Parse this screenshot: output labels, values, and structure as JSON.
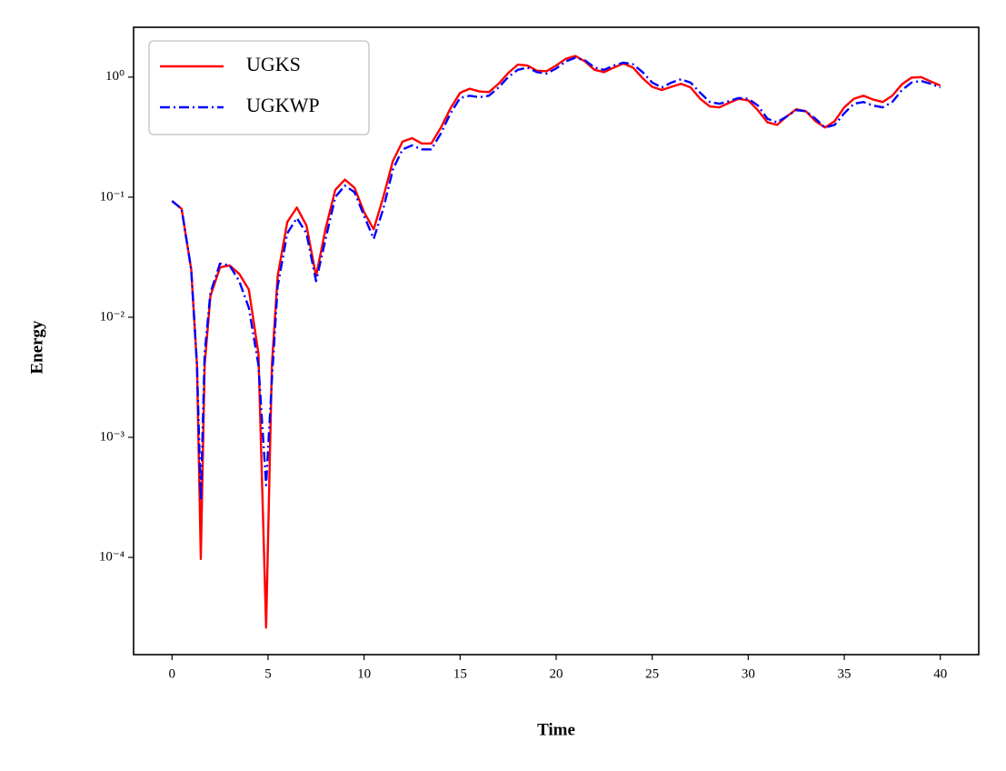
{
  "chart_data": {
    "type": "line",
    "x_label": "Time",
    "y_label": "Energy",
    "x": [
      0,
      0.5,
      1,
      1.3,
      1.5,
      1.7,
      2,
      2.5,
      3,
      3.5,
      4,
      4.5,
      4.9,
      5.2,
      5.5,
      6,
      6.5,
      7,
      7.5,
      8,
      8.5,
      9,
      9.5,
      10,
      10.5,
      11,
      11.5,
      12,
      12.5,
      13,
      13.5,
      14,
      14.5,
      15,
      15.5,
      16,
      16.5,
      17,
      17.5,
      18,
      18.5,
      19,
      19.5,
      20,
      20.5,
      21,
      21.5,
      22,
      22.5,
      23,
      23.5,
      24,
      24.5,
      25,
      25.5,
      26,
      26.5,
      27,
      27.5,
      28,
      28.5,
      29,
      29.5,
      30,
      30.5,
      31,
      31.5,
      32,
      32.5,
      33,
      33.5,
      34,
      34.5,
      35,
      35.5,
      36,
      36.5,
      37,
      37.5,
      38,
      38.5,
      39,
      39.5,
      40
    ],
    "series": [
      {
        "name": "UGKS",
        "color": "#ff0000",
        "style": "solid",
        "values": [
          0.093,
          0.08,
          0.025,
          0.004,
          9.7e-05,
          0.004,
          0.015,
          0.026,
          0.027,
          0.023,
          0.017,
          0.005,
          2.6e-05,
          0.004,
          0.022,
          0.062,
          0.082,
          0.058,
          0.022,
          0.055,
          0.115,
          0.14,
          0.12,
          0.075,
          0.054,
          0.1,
          0.2,
          0.29,
          0.31,
          0.28,
          0.28,
          0.38,
          0.55,
          0.74,
          0.8,
          0.76,
          0.75,
          0.88,
          1.08,
          1.27,
          1.25,
          1.13,
          1.12,
          1.25,
          1.42,
          1.5,
          1.35,
          1.15,
          1.1,
          1.2,
          1.3,
          1.2,
          0.98,
          0.83,
          0.78,
          0.83,
          0.88,
          0.82,
          0.66,
          0.57,
          0.56,
          0.61,
          0.66,
          0.64,
          0.53,
          0.42,
          0.4,
          0.47,
          0.54,
          0.52,
          0.43,
          0.38,
          0.43,
          0.56,
          0.66,
          0.7,
          0.65,
          0.62,
          0.7,
          0.87,
          0.99,
          1.0,
          0.92,
          0.85
        ]
      },
      {
        "name": "UGKWP",
        "color": "#0000ff",
        "style": "dashdot",
        "values": [
          0.093,
          0.08,
          0.025,
          0.004,
          0.0003,
          0.005,
          0.016,
          0.028,
          0.027,
          0.02,
          0.012,
          0.004,
          0.0004,
          0.003,
          0.018,
          0.05,
          0.067,
          0.05,
          0.02,
          0.045,
          0.1,
          0.125,
          0.11,
          0.07,
          0.045,
          0.08,
          0.17,
          0.25,
          0.27,
          0.25,
          0.25,
          0.34,
          0.5,
          0.67,
          0.7,
          0.68,
          0.7,
          0.82,
          1.0,
          1.15,
          1.2,
          1.1,
          1.07,
          1.18,
          1.35,
          1.45,
          1.38,
          1.2,
          1.15,
          1.25,
          1.32,
          1.28,
          1.1,
          0.9,
          0.82,
          0.9,
          0.96,
          0.9,
          0.74,
          0.62,
          0.6,
          0.63,
          0.67,
          0.66,
          0.58,
          0.45,
          0.42,
          0.47,
          0.53,
          0.52,
          0.45,
          0.38,
          0.4,
          0.5,
          0.6,
          0.62,
          0.58,
          0.56,
          0.62,
          0.78,
          0.9,
          0.93,
          0.88,
          0.82
        ]
      }
    ],
    "xlim": [
      -2,
      42
    ],
    "xticks": [
      0,
      5,
      10,
      15,
      20,
      25,
      30,
      35,
      40
    ],
    "ylim": [
      1.55e-05,
      2.6
    ],
    "log_y": true,
    "yticks": [
      {
        "value": 0.0001,
        "label": "10⁻⁴"
      },
      {
        "value": 0.001,
        "label": "10⁻³"
      },
      {
        "value": 0.01,
        "label": "10⁻²"
      },
      {
        "value": 0.1,
        "label": "10⁻¹"
      },
      {
        "value": 1,
        "label": "10⁰"
      }
    ],
    "legend": "upper left"
  }
}
